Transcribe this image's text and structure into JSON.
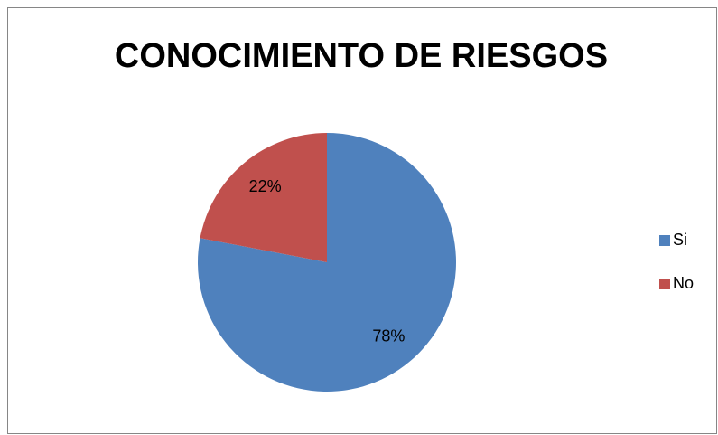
{
  "chart_data": {
    "type": "pie",
    "title": "CONOCIMIENTO DE RIESGOS",
    "categories": [
      "Si",
      "No"
    ],
    "values": [
      78,
      22
    ],
    "value_labels": [
      "78%",
      "22%"
    ],
    "colors": [
      "#4f81bd",
      "#c0504d"
    ],
    "legend": "right"
  }
}
